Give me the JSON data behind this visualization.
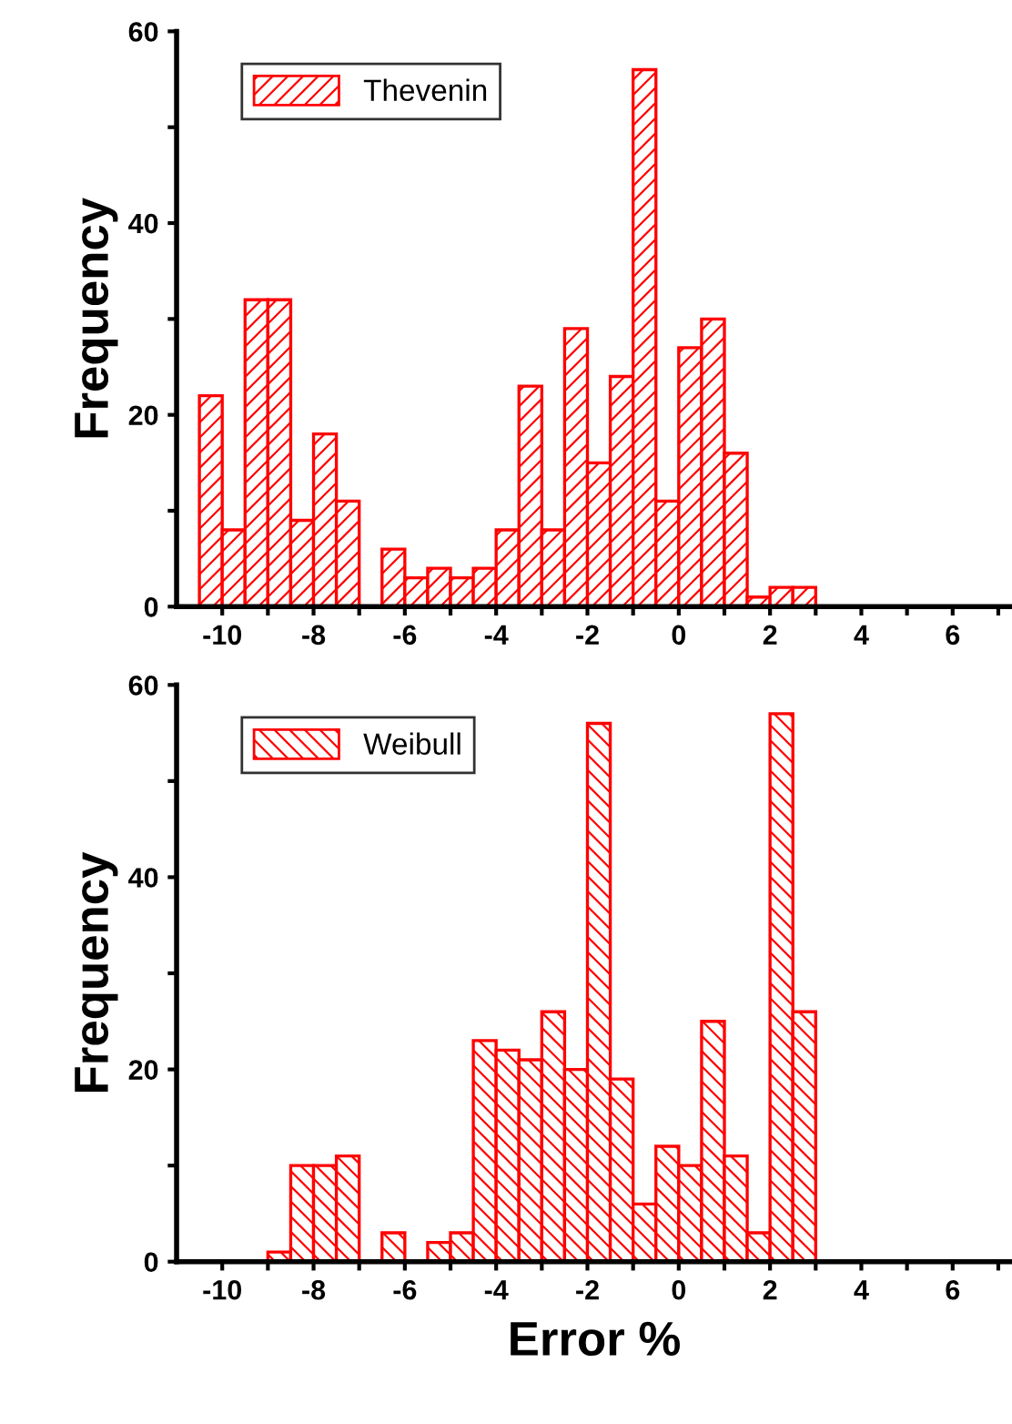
{
  "chart_data": [
    {
      "type": "histogram",
      "ylabel": "Frequency",
      "legend": "top left",
      "grid": false,
      "bins": [
        -10.5,
        -10,
        -9.5,
        -9,
        -8.5,
        -8,
        -7.5,
        -7,
        -6.5,
        -6,
        -5.5,
        -5,
        -4.5,
        -4,
        -3.5,
        -3,
        -2.5,
        -2,
        -1.5,
        -1,
        -0.5,
        0,
        0.5,
        1,
        1.5,
        2,
        2.5,
        3
      ],
      "series": [
        {
          "name": "Thevenin",
          "color": "#ff0000",
          "values": [
            22,
            8,
            32,
            32,
            9,
            18,
            11,
            0,
            6,
            3,
            4,
            3,
            4,
            8,
            23,
            8,
            29,
            15,
            24,
            56,
            11,
            27,
            30,
            16,
            1,
            2,
            2
          ]
        }
      ],
      "xlim": [
        -11,
        7.3
      ],
      "xticks": [
        -10,
        {
          "value": -9,
          "label": null
        },
        -8,
        {
          "value": -7,
          "label": null
        },
        -6,
        {
          "value": -5,
          "label": null
        },
        -4,
        {
          "value": -3,
          "label": null
        },
        -2,
        {
          "value": -1,
          "label": null
        },
        0,
        {
          "value": 1,
          "label": null
        },
        2,
        {
          "value": 3,
          "label": null
        },
        4,
        {
          "value": 5,
          "label": null
        },
        6,
        {
          "value": 7,
          "label": null
        }
      ],
      "ylim": [
        0,
        60
      ],
      "yticks": [
        0,
        {
          "value": 10,
          "label": null
        },
        20,
        {
          "value": 30,
          "label": null
        },
        40,
        {
          "value": 50,
          "label": null
        },
        60
      ]
    },
    {
      "type": "histogram",
      "ylabel": "Frequency",
      "xlabel": "Error %",
      "legend": "top left",
      "grid": false,
      "bins": [
        -9,
        -8.5,
        -8,
        -7.5,
        -7,
        -6.5,
        -6,
        -5.5,
        -5,
        -4.5,
        -4,
        -3.5,
        -3,
        -2.5,
        -2,
        -1.5,
        -1,
        -0.5,
        0,
        0.5,
        1,
        1.5,
        2,
        2.5,
        3
      ],
      "series": [
        {
          "name": "Weibull",
          "color": "#ff0000",
          "values": [
            1,
            10,
            10,
            11,
            0,
            3,
            0,
            2,
            3,
            23,
            22,
            21,
            26,
            20,
            56,
            19,
            6,
            12,
            10,
            25,
            11,
            3,
            57,
            26
          ]
        }
      ],
      "xlim": [
        -11,
        7.3
      ],
      "xticks": [
        -10,
        {
          "value": -9,
          "label": null
        },
        -8,
        {
          "value": -7,
          "label": null
        },
        -6,
        {
          "value": -5,
          "label": null
        },
        -4,
        {
          "value": -3,
          "label": null
        },
        -2,
        {
          "value": -1,
          "label": null
        },
        0,
        {
          "value": 1,
          "label": null
        },
        2,
        {
          "value": 3,
          "label": null
        },
        4,
        {
          "value": 5,
          "label": null
        },
        6,
        {
          "value": 7,
          "label": null
        }
      ],
      "ylim": [
        0,
        60
      ],
      "yticks": [
        0,
        {
          "value": 10,
          "label": null
        },
        20,
        {
          "value": 30,
          "label": null
        },
        40,
        {
          "value": 50,
          "label": null
        },
        60
      ]
    }
  ]
}
